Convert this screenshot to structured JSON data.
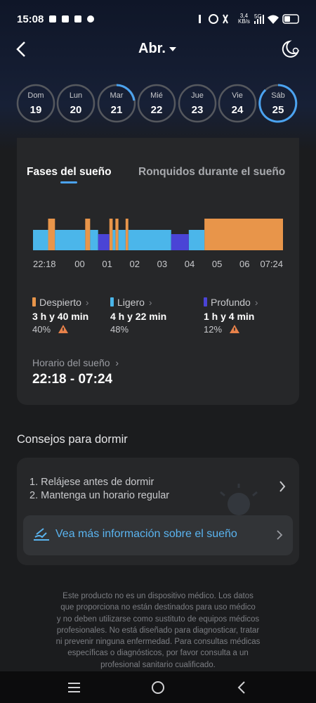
{
  "status": {
    "time": "15:08",
    "speed": "3,4",
    "speed_unit": "KB/s",
    "network": "5G"
  },
  "header": {
    "month": "Abr."
  },
  "days": [
    {
      "name": "Dom",
      "number": "19"
    },
    {
      "name": "Lun",
      "number": "20"
    },
    {
      "name": "Mar",
      "number": "21"
    },
    {
      "name": "Mié",
      "number": "22"
    },
    {
      "name": "Jue",
      "number": "23"
    },
    {
      "name": "Vie",
      "number": "24"
    },
    {
      "name": "Sáb",
      "number": "25"
    }
  ],
  "tabs": [
    "Fases del sueño",
    "Ronquidos durante el sueño"
  ],
  "sleep": {
    "xlim": [
      22.3,
      31.4
    ],
    "xticks": [
      {
        "value": 22.3,
        "label": "22:18"
      },
      {
        "value": 24,
        "label": "00"
      },
      {
        "value": 25,
        "label": "01"
      },
      {
        "value": 26,
        "label": "02"
      },
      {
        "value": 27,
        "label": "03"
      },
      {
        "value": 28,
        "label": "04"
      },
      {
        "value": 29,
        "label": "05"
      },
      {
        "value": 30,
        "label": "06"
      },
      {
        "value": 31.4,
        "label": "07:24"
      }
    ],
    "phases": [
      {
        "name": "Despierto",
        "color": "#e8954a",
        "duration": "3 h y 40 min",
        "percent": "40%",
        "warning": true,
        "segments": [
          [
            22.85,
            23.1
          ],
          [
            24.2,
            24.38
          ],
          [
            25.08,
            25.2
          ],
          [
            25.3,
            25.41
          ],
          [
            25.67,
            25.77
          ],
          [
            28.54,
            31.4
          ]
        ]
      },
      {
        "name": "Ligero",
        "color": "#4bb6ea",
        "duration": "4 h y 22 min",
        "percent": "48%",
        "warning": false,
        "segments": [
          [
            22.3,
            22.85
          ],
          [
            23.1,
            24.2
          ],
          [
            24.38,
            24.67
          ],
          [
            25.2,
            25.3
          ],
          [
            25.41,
            25.67
          ],
          [
            25.77,
            27.33
          ],
          [
            27.97,
            28.54
          ]
        ]
      },
      {
        "name": "Profundo",
        "color": "#4a44d6",
        "duration": "1 h y 4 min",
        "percent": "12%",
        "warning": true,
        "segments": [
          [
            24.67,
            25.08
          ],
          [
            27.33,
            27.97
          ]
        ]
      }
    ],
    "schedule_label": "Horario del sueño",
    "schedule": "22:18 - 07:24"
  },
  "tips": {
    "title": "Consejos para dormir",
    "items": [
      "1. Relájese antes de dormir",
      "2. Mantenga un horario regular"
    ],
    "link": "Vea más información sobre el sueño"
  },
  "disclaimer": [
    "Este producto no es un dispositivo médico. Los datos",
    "que proporciona no están destinados para uso médico",
    "y no deben utilizarse como sustituto de equipos médicos",
    "profesionales. No está diseñado para diagnosticar, tratar",
    "ni prevenir ninguna enfermedad. Para consultas médicas",
    "específicas o diagnósticos, por favor consulta a un",
    "profesional sanitario cualificado."
  ]
}
